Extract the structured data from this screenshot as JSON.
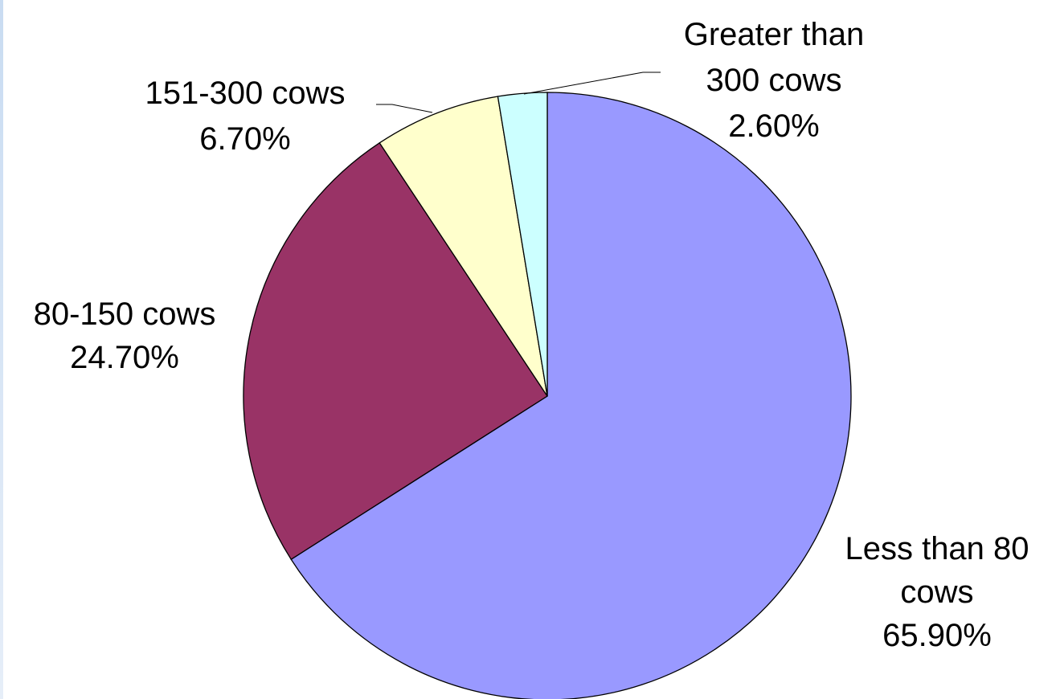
{
  "chart_data": {
    "type": "pie",
    "start_angle_deg": 0,
    "direction": "clockwise",
    "slices": [
      {
        "name": "Less than 80 cows",
        "value": 65.9,
        "label_lines": [
          "Less than 80",
          "cows",
          "65.90%"
        ],
        "color": "#9999ff"
      },
      {
        "name": "80-150 cows",
        "value": 24.7,
        "label_lines": [
          "80-150 cows",
          "24.70%"
        ],
        "color": "#993366"
      },
      {
        "name": "151-300 cows",
        "value": 6.7,
        "label_lines": [
          "151-300 cows",
          "6.70%"
        ],
        "color": "#ffffcc"
      },
      {
        "name": "Greater than 300 cows",
        "value": 2.6,
        "label_lines": [
          "Greater than",
          "300 cows",
          "2.60%"
        ],
        "color": "#ccffff"
      }
    ],
    "legend": "none"
  }
}
